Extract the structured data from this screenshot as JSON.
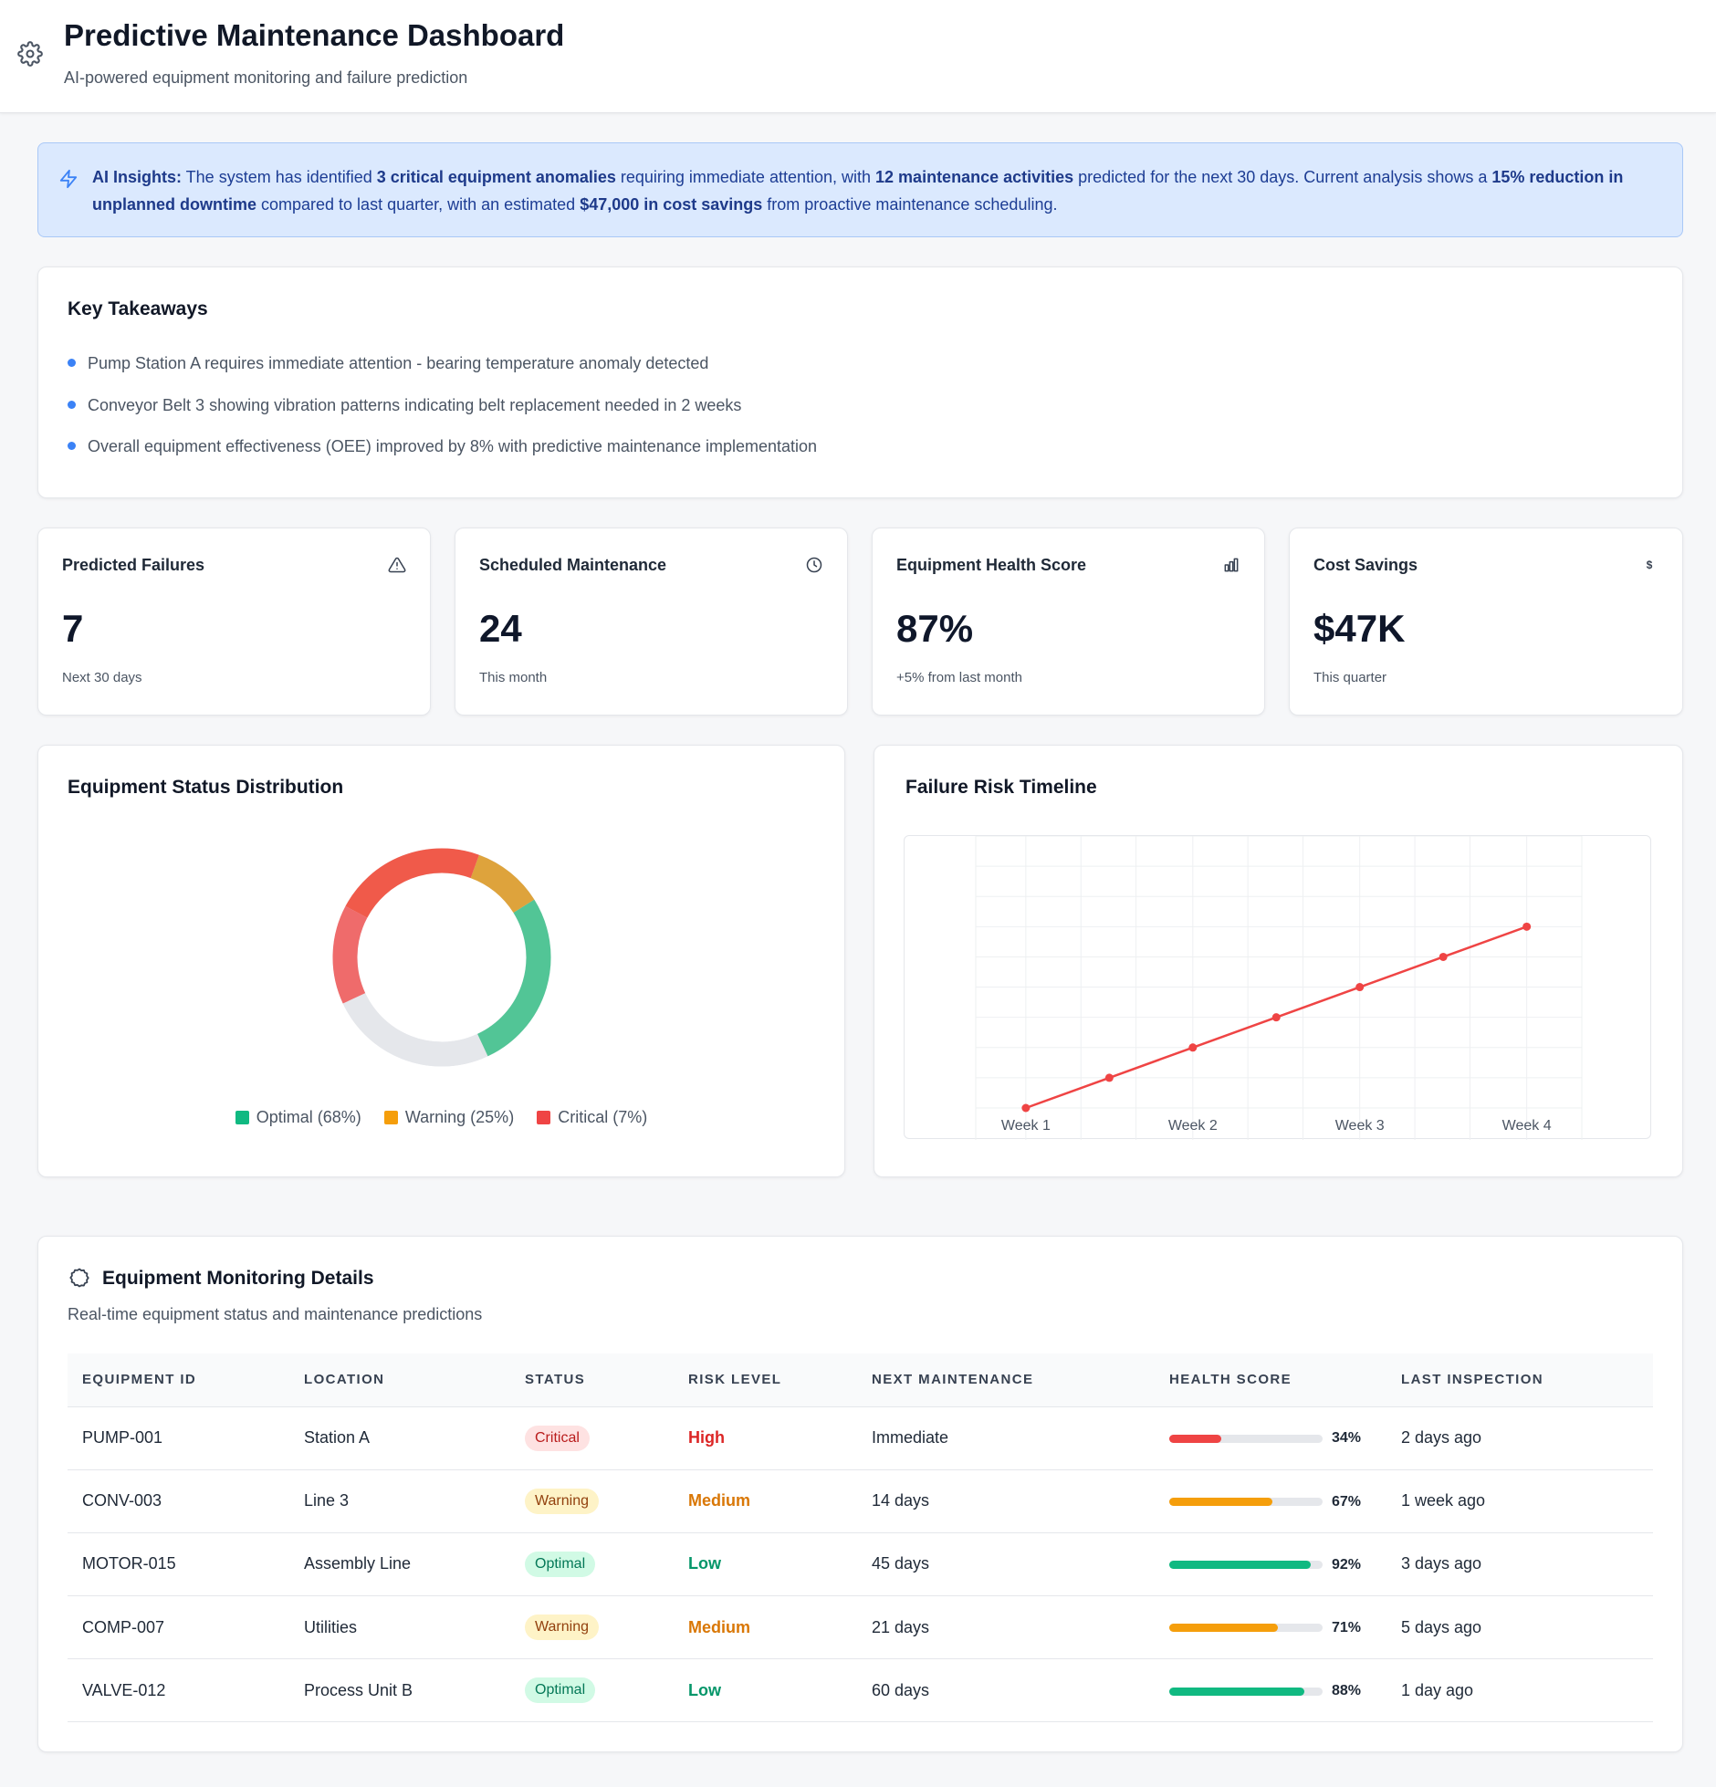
{
  "header": {
    "title": "Predictive Maintenance Dashboard",
    "subtitle": "AI-powered equipment monitoring and failure prediction",
    "icon": "gear-icon"
  },
  "insight": {
    "icon": "lightning-icon",
    "label": "AI Insights:",
    "t1": " The system has identified ",
    "b1": "3 critical equipment anomalies",
    "t2": " requiring immediate attention, with ",
    "b2": "12 maintenance activities",
    "t3": " predicted for the next 30 days. Current analysis shows a ",
    "b3": "15% reduction in unplanned downtime",
    "t4": " compared to last quarter, with an estimated ",
    "b4": "$47,000 in cost savings",
    "t5": " from proactive maintenance scheduling."
  },
  "takeaways": {
    "title": "Key Takeaways",
    "items": [
      "Pump Station A requires immediate attention - bearing temperature anomaly detected",
      "Conveyor Belt 3 showing vibration patterns indicating belt replacement needed in 2 weeks",
      "Overall equipment effectiveness (OEE) improved by 8% with predictive maintenance implementation"
    ]
  },
  "stats": [
    {
      "label": "Predicted Failures",
      "value": "7",
      "note": "Next 30 days",
      "icon": "alert-triangle-icon"
    },
    {
      "label": "Scheduled Maintenance",
      "value": "24",
      "note": "This month",
      "icon": "clock-icon"
    },
    {
      "label": "Equipment Health Score",
      "value": "87%",
      "note": "+5% from last month",
      "icon": "bar-chart-icon"
    },
    {
      "label": "Cost Savings",
      "value": "$47K",
      "note": "This quarter",
      "icon": "dollar-icon"
    }
  ],
  "colors": {
    "optimal": "#10b981",
    "warning": "#f59e0b",
    "critical": "#ef4444",
    "accent": "#3b82f6"
  },
  "chart_data": [
    {
      "type": "pie",
      "title": "Equipment Status Distribution",
      "legend": [
        "Optimal (68%)",
        "Warning (25%)",
        "Critical (7%)"
      ],
      "legend_colors": [
        "#10b981",
        "#f59e0b",
        "#ef4444"
      ]
    },
    {
      "type": "line",
      "title": "Failure Risk Timeline",
      "categories": [
        "Week 1",
        "Week 2",
        "Week 3",
        "Week 4"
      ],
      "x": [
        1,
        1.5,
        2,
        2.5,
        3,
        3.5,
        4
      ],
      "values": [
        0,
        1,
        2,
        3,
        4,
        5,
        6
      ],
      "color": "#ef4444",
      "grid": true
    }
  ],
  "table": {
    "title": "Equipment Monitoring Details",
    "subtitle": "Real-time equipment status and maintenance predictions",
    "icon": "cog-icon",
    "columns": [
      "EQUIPMENT ID",
      "LOCATION",
      "STATUS",
      "RISK LEVEL",
      "NEXT MAINTENANCE",
      "HEALTH SCORE",
      "LAST INSPECTION"
    ],
    "rows": [
      {
        "id": "PUMP-001",
        "location": "Station A",
        "status": "Critical",
        "risk": "High",
        "next": "Immediate",
        "health": 34,
        "health_label": "34%",
        "last": "2 days ago"
      },
      {
        "id": "CONV-003",
        "location": "Line 3",
        "status": "Warning",
        "risk": "Medium",
        "next": "14 days",
        "health": 67,
        "health_label": "67%",
        "last": "1 week ago"
      },
      {
        "id": "MOTOR-015",
        "location": "Assembly Line",
        "status": "Optimal",
        "risk": "Low",
        "next": "45 days",
        "health": 92,
        "health_label": "92%",
        "last": "3 days ago"
      },
      {
        "id": "COMP-007",
        "location": "Utilities",
        "status": "Warning",
        "risk": "Medium",
        "next": "21 days",
        "health": 71,
        "health_label": "71%",
        "last": "5 days ago"
      },
      {
        "id": "VALVE-012",
        "location": "Process Unit B",
        "status": "Optimal",
        "risk": "Low",
        "next": "60 days",
        "health": 88,
        "health_label": "88%",
        "last": "1 day ago"
      }
    ]
  }
}
